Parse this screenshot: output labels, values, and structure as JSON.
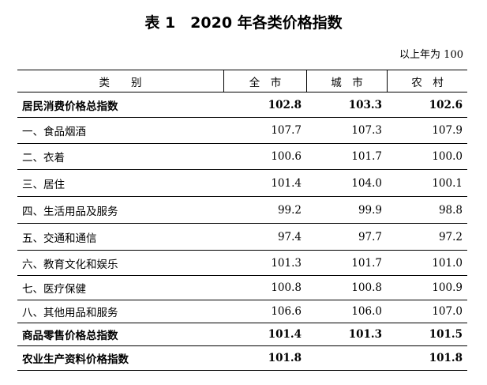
{
  "header": {
    "title": "表 1　2020 年各类价格指数",
    "unit": "以上年为 100"
  },
  "table": {
    "columns": [
      "类　　别",
      "全　市",
      "城　市",
      "农　村"
    ],
    "rows": [
      [
        "居民消费价格总指数",
        "102.8",
        "103.3",
        "102.6"
      ],
      [
        "一、食品烟酒",
        "107.7",
        "107.3",
        "107.9"
      ],
      [
        "二、衣着",
        "100.6",
        "101.7",
        "100.0"
      ],
      [
        "三、居住",
        "101.4",
        "104.0",
        "100.1"
      ],
      [
        "四、生活用品及服务",
        "99.2",
        "99.9",
        "98.8"
      ],
      [
        "五、交通和通信",
        "97.4",
        "97.7",
        "97.2"
      ],
      [
        "六、教育文化和娱乐",
        "101.3",
        "101.7",
        "101.0"
      ],
      [
        "七、医疗保健",
        "100.8",
        "100.8",
        "100.9"
      ],
      [
        "八、其他用品和服务",
        "106.6",
        "106.0",
        "107.0"
      ],
      [
        "商品零售价格总指数",
        "101.4",
        "101.3",
        "101.5"
      ],
      [
        "农业生产资料价格指数",
        "101.8",
        null,
        "101.8"
      ]
    ]
  }
}
